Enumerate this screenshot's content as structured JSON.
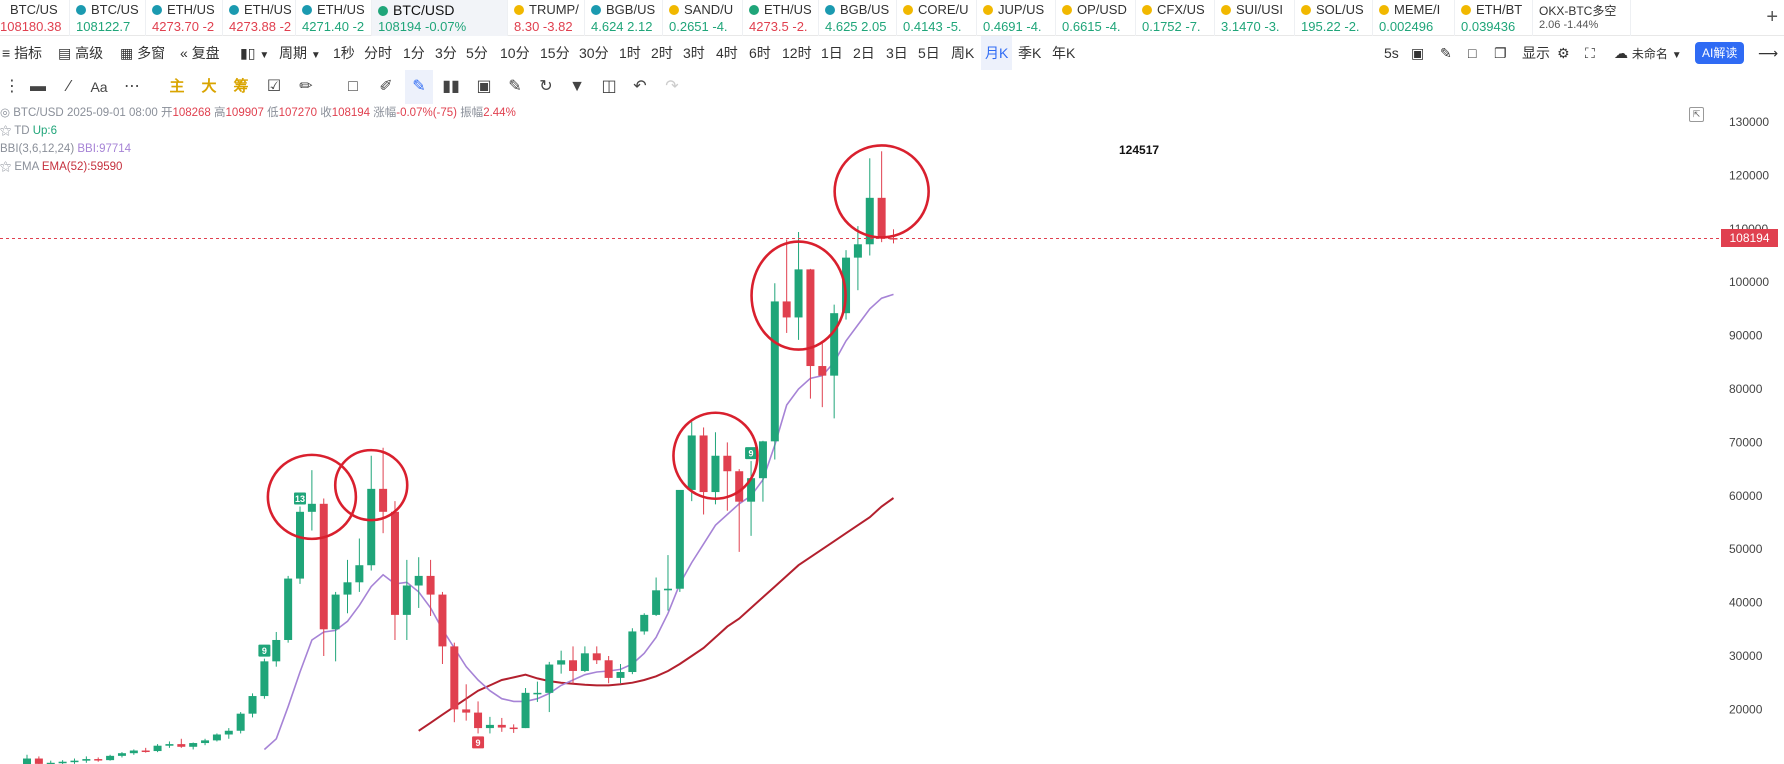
{
  "tickers": [
    {
      "name": "BTC/US",
      "price": "108180.38",
      "change": "",
      "dir": "dn",
      "icon": "none"
    },
    {
      "name": "BTC/US",
      "price": "108122.7",
      "change": "",
      "dir": "up",
      "icon": "teal"
    },
    {
      "name": "ETH/US",
      "price": "4273.70",
      "change": "-2",
      "dir": "dn",
      "icon": "teal"
    },
    {
      "name": "ETH/US",
      "price": "4273.88",
      "change": "-2",
      "dir": "dn",
      "icon": "teal"
    },
    {
      "name": "ETH/US",
      "price": "4271.40",
      "change": "-2",
      "dir": "up",
      "icon": "teal"
    },
    {
      "name": "BTC/USD",
      "price": "108194",
      "change": "-0.07%",
      "dir": "up",
      "icon": "green",
      "active": true
    },
    {
      "name": "TRUMP/",
      "price": "8.30",
      "change": "-3.82",
      "dir": "dn",
      "icon": "yellow"
    },
    {
      "name": "BGB/US",
      "price": "4.624",
      "change": "2.12",
      "dir": "up",
      "icon": "teal"
    },
    {
      "name": "SAND/U",
      "price": "0.2651",
      "change": "-4.",
      "dir": "up",
      "icon": "yellow"
    },
    {
      "name": "ETH/US",
      "price": "4273.5",
      "change": "-2.",
      "dir": "dn",
      "icon": "green"
    },
    {
      "name": "BGB/US",
      "price": "4.625",
      "change": "2.05",
      "dir": "up",
      "icon": "teal"
    },
    {
      "name": "CORE/U",
      "price": "0.4143",
      "change": "-5.",
      "dir": "up",
      "icon": "yellow"
    },
    {
      "name": "JUP/US",
      "price": "0.4691",
      "change": "-4.",
      "dir": "up",
      "icon": "yellow"
    },
    {
      "name": "OP/USD",
      "price": "0.6615",
      "change": "-4.",
      "dir": "up",
      "icon": "yellow"
    },
    {
      "name": "CFX/US",
      "price": "0.1752",
      "change": "-7.",
      "dir": "up",
      "icon": "yellow"
    },
    {
      "name": "SUI/USI",
      "price": "3.1470",
      "change": "-3.",
      "dir": "up",
      "icon": "yellow"
    },
    {
      "name": "SOL/US",
      "price": "195.22",
      "change": "-2.",
      "dir": "up",
      "icon": "yellow"
    },
    {
      "name": "MEME/I",
      "price": "0.002496",
      "change": "",
      "dir": "up",
      "icon": "yellow"
    },
    {
      "name": "ETH/BT",
      "price": "0.039436",
      "change": "",
      "dir": "up",
      "icon": "yellow"
    },
    {
      "name": "OKX-BTC多空",
      "price": "2.06",
      "change": "-1.44%",
      "dir": "up",
      "icon": "none",
      "small": true
    }
  ],
  "toolbar": {
    "indicator_label": "指标",
    "advanced_label": "高级",
    "multi_window_label": "多窗",
    "replay_label": "复盘",
    "period_label": "周期",
    "periods": [
      "1秒",
      "分时",
      "1分",
      "3分",
      "5分",
      "10分",
      "15分",
      "30分",
      "1时",
      "2时",
      "3时",
      "4时",
      "6时",
      "12时",
      "1日",
      "2日",
      "3日",
      "5日",
      "周K",
      "月K",
      "季K",
      "年K"
    ],
    "selected_period": "月K",
    "refresh": "5s",
    "display_label": "显示",
    "unnamed_label": "未命名",
    "ai_label": "AI解读"
  },
  "drawbar": {
    "main": "主",
    "big": "大",
    "chip": "筹",
    "font": "Aa"
  },
  "legend": {
    "symbol": "BTC/USD",
    "datetime": "2025-09-01 08:00",
    "open_label": "开",
    "open": "108268",
    "high_label": "高",
    "high": "109907",
    "low_label": "低",
    "low": "107270",
    "close_label": "收",
    "close": "108194",
    "change_label": "涨幅",
    "change": "-0.07%(-75)",
    "amp_label": "振幅",
    "amp": "2.44%",
    "td_name": "TD",
    "td_value": "Up:6",
    "bbi_name": "BBI(3,6,12,24)",
    "bbi_value": "BBI:97714",
    "ema_name": "EMA",
    "ema_value": "EMA(52):59590"
  },
  "current_price_label": "108194",
  "max_label": "124517",
  "colors": {
    "up": "#1fa579",
    "down": "#e0404f",
    "bbi": "#a683d6",
    "ema": "#b3202e",
    "circle": "#d9202e"
  },
  "chart_data": {
    "type": "candlestick",
    "title": "",
    "xlabel": "",
    "ylabel": "",
    "ylim": [
      10000,
      132000
    ],
    "yticks": [
      20000,
      30000,
      40000,
      50000,
      60000,
      70000,
      80000,
      90000,
      100000,
      110000,
      120000,
      130000
    ],
    "grid": false,
    "current_price": 108194,
    "series": [
      {
        "name": "BTC/USD",
        "type": "ohlc",
        "values": [
          [
            9500,
            11500,
            9000,
            10800
          ],
          [
            10800,
            11200,
            9500,
            9800
          ],
          [
            9800,
            10400,
            9000,
            10000
          ],
          [
            10000,
            10500,
            9500,
            10200
          ],
          [
            10200,
            10800,
            9800,
            10400
          ],
          [
            10400,
            11200,
            10000,
            10700
          ],
          [
            10700,
            11000,
            10200,
            10500
          ],
          [
            10500,
            11500,
            10400,
            11300
          ],
          [
            11300,
            12000,
            11000,
            11800
          ],
          [
            11800,
            12500,
            11500,
            12300
          ],
          [
            12300,
            12800,
            11900,
            12200
          ],
          [
            12200,
            13500,
            12000,
            13200
          ],
          [
            13200,
            14000,
            12800,
            13500
          ],
          [
            13500,
            14500,
            12800,
            13000
          ],
          [
            13000,
            13800,
            12500,
            13700
          ],
          [
            13700,
            14500,
            13300,
            14200
          ],
          [
            14200,
            15500,
            14000,
            15300
          ],
          [
            15300,
            16500,
            14500,
            16000
          ],
          [
            16000,
            19500,
            15500,
            19200
          ],
          [
            19200,
            23000,
            18500,
            22500
          ],
          [
            22500,
            29500,
            22000,
            29000
          ],
          [
            29000,
            34500,
            28000,
            33000
          ],
          [
            33000,
            45000,
            32500,
            44500
          ],
          [
            44500,
            58000,
            43500,
            57000
          ],
          [
            57000,
            64800,
            53500,
            58500
          ],
          [
            58500,
            59500,
            30000,
            35000
          ],
          [
            35000,
            42000,
            29000,
            41500
          ],
          [
            41500,
            48000,
            38000,
            43800
          ],
          [
            43800,
            52000,
            42000,
            47000
          ],
          [
            47000,
            67500,
            46000,
            61300
          ],
          [
            61300,
            69000,
            53000,
            57000
          ],
          [
            57000,
            59000,
            33000,
            37700
          ],
          [
            37700,
            48000,
            33000,
            43200
          ],
          [
            43200,
            48500,
            39000,
            45000
          ],
          [
            45000,
            48000,
            37500,
            41500
          ],
          [
            41500,
            42000,
            28500,
            31800
          ],
          [
            31800,
            32500,
            17600,
            20000
          ],
          [
            20000,
            24700,
            17900,
            19400
          ],
          [
            19400,
            21500,
            15500,
            16500
          ],
          [
            16500,
            18600,
            15500,
            17100
          ],
          [
            17100,
            18400,
            15800,
            16600
          ],
          [
            16600,
            17200,
            15600,
            16500
          ],
          [
            16500,
            24000,
            16500,
            23100
          ],
          [
            23100,
            25200,
            21400,
            23100
          ],
          [
            23100,
            28900,
            19500,
            28400
          ],
          [
            28400,
            31000,
            26700,
            29200
          ],
          [
            29200,
            31800,
            24800,
            27200
          ],
          [
            27200,
            31800,
            27000,
            30500
          ],
          [
            30500,
            31800,
            28500,
            29200
          ],
          [
            29200,
            30000,
            24900,
            25900
          ],
          [
            25900,
            28500,
            24900,
            27000
          ],
          [
            27000,
            35200,
            26600,
            34600
          ],
          [
            34600,
            38000,
            34000,
            37700
          ],
          [
            37700,
            44700,
            37500,
            42300
          ],
          [
            42300,
            48900,
            38500,
            42600
          ],
          [
            42600,
            53000,
            42000,
            61100
          ],
          [
            61100,
            73800,
            59000,
            71300
          ],
          [
            71300,
            72800,
            56500,
            60700
          ],
          [
            60700,
            71900,
            58400,
            67500
          ],
          [
            67500,
            70000,
            57200,
            64600
          ],
          [
            64600,
            65000,
            49500,
            58900
          ],
          [
            58900,
            66500,
            52500,
            63300
          ],
          [
            63300,
            70300,
            58900,
            70200
          ],
          [
            70200,
            99800,
            66800,
            96400
          ],
          [
            96400,
            108000,
            90500,
            93400
          ],
          [
            93400,
            109400,
            89200,
            102400
          ],
          [
            102400,
            102500,
            78200,
            84300
          ],
          [
            84300,
            88700,
            76600,
            82500
          ],
          [
            82500,
            95800,
            74500,
            94200
          ],
          [
            94200,
            106000,
            93000,
            104600
          ],
          [
            104600,
            110500,
            98500,
            107100
          ],
          [
            107100,
            123200,
            105000,
            115800
          ],
          [
            115800,
            124517,
            107500,
            108300
          ],
          [
            108268,
            109907,
            107270,
            108194
          ]
        ]
      },
      {
        "name": "BBI(3,6,12,24)",
        "type": "line",
        "values": [
          null,
          null,
          null,
          null,
          null,
          null,
          null,
          null,
          null,
          null,
          null,
          null,
          null,
          null,
          null,
          null,
          null,
          null,
          null,
          null,
          12500,
          14500,
          20500,
          27000,
          33000,
          34500,
          34800,
          36500,
          39500,
          43000,
          45200,
          43500,
          43800,
          42000,
          39000,
          35000,
          31500,
          28000,
          25500,
          23500,
          22000,
          21500,
          21500,
          22000,
          23000,
          24500,
          25500,
          26500,
          27000,
          27200,
          27500,
          28500,
          30500,
          33500,
          38000,
          43500,
          47500,
          51000,
          54500,
          56500,
          58500,
          60000,
          63000,
          69500,
          77000,
          80000,
          82000,
          82500,
          85000,
          89000,
          92000,
          95000,
          97000,
          97714
        ]
      },
      {
        "name": "EMA(52)",
        "type": "line",
        "values": [
          null,
          null,
          null,
          null,
          null,
          null,
          null,
          null,
          null,
          null,
          null,
          null,
          null,
          null,
          null,
          null,
          null,
          null,
          null,
          null,
          null,
          null,
          null,
          null,
          null,
          null,
          null,
          null,
          null,
          null,
          null,
          null,
          null,
          16000,
          17500,
          19000,
          20500,
          22000,
          23500,
          24500,
          25500,
          26000,
          26500,
          25800,
          25300,
          25000,
          24800,
          24600,
          24500,
          24500,
          24700,
          25000,
          25500,
          26200,
          27200,
          28500,
          30000,
          31500,
          33500,
          35500,
          37000,
          39000,
          41000,
          43000,
          45000,
          47000,
          48500,
          50000,
          51500,
          53000,
          54500,
          56000,
          58000,
          59590
        ]
      }
    ],
    "markers": [
      {
        "index": 20,
        "label": "9",
        "color": "up"
      },
      {
        "index": 23,
        "label": "13",
        "color": "up"
      },
      {
        "index": 38,
        "label": "9",
        "color": "down"
      },
      {
        "index": 61,
        "label": "9",
        "color": "up"
      }
    ],
    "annotations": [
      {
        "type": "circle",
        "index": 24,
        "price": 59800
      },
      {
        "type": "circle",
        "index": 29,
        "price": 62000
      },
      {
        "type": "circle",
        "index": 58,
        "price": 67500
      },
      {
        "type": "circle",
        "index": 65,
        "price": 97500
      },
      {
        "type": "circle",
        "index": 72,
        "price": 117000
      }
    ]
  }
}
